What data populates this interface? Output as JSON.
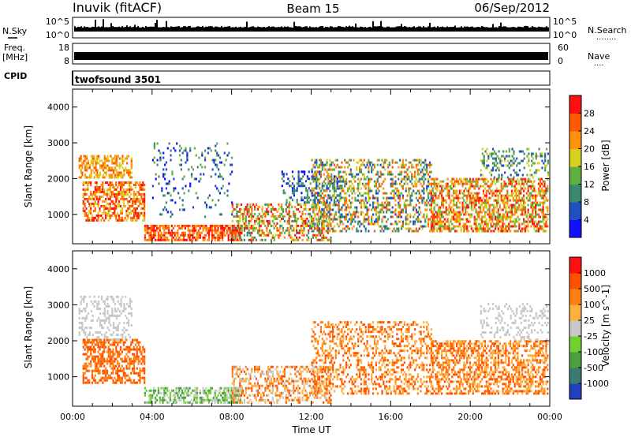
{
  "header": {
    "station": "Inuvik (fitACF)",
    "beam": "Beam 15",
    "date": "06/Sep/2012"
  },
  "side_labels": {
    "n_sky": "N.Sky",
    "n_search": "N.Search",
    "freq": "Freq.",
    "freq_unit": "[MHz]",
    "cpid": "CPID",
    "nave": "Nave",
    "dots_search": "........",
    "dots_nave": "...."
  },
  "noise_panel": {
    "left_ticks": [
      "10^5",
      "10^0"
    ],
    "right_ticks": [
      "10^5",
      "10^0"
    ]
  },
  "freq_panel": {
    "left_ticks": [
      "18",
      "8"
    ],
    "right_ticks": [
      "60",
      "0"
    ]
  },
  "cpid_panel": {
    "text": "twofsound 3501"
  },
  "chart_data": [
    {
      "type": "heatmap",
      "title": "",
      "xlabel": "",
      "ylabel": "Slant Range [km]",
      "yticks": [
        "1000",
        "2000",
        "3000",
        "4000"
      ],
      "ylim": [
        180,
        4500
      ],
      "xlim": [
        0,
        24
      ],
      "colorbar": {
        "label": "Power [dB]",
        "ticks": [
          "4",
          "8",
          "12",
          "16",
          "20",
          "24",
          "28"
        ],
        "colors": [
          "#1010ff",
          "#2050c0",
          "#3a8a70",
          "#60b040",
          "#d8d020",
          "#ff9010",
          "#ff5a00",
          "#ff1010"
        ]
      },
      "patches": [
        {
          "t0": 0.3,
          "t1": 3.0,
          "r0": 2000,
          "r1": 2600,
          "d": 0.55,
          "c": [
            4,
            6
          ]
        },
        {
          "t0": 0.5,
          "t1": 3.6,
          "r0": 800,
          "r1": 1900,
          "d": 0.55,
          "c": [
            4,
            7
          ]
        },
        {
          "t0": 3.6,
          "t1": 8.5,
          "r0": 250,
          "r1": 650,
          "d": 0.7,
          "c": [
            5,
            7
          ]
        },
        {
          "t0": 4.0,
          "t1": 8.0,
          "r0": 900,
          "r1": 3000,
          "d": 0.12,
          "c": [
            0,
            3
          ]
        },
        {
          "t0": 8.0,
          "t1": 13.0,
          "r0": 250,
          "r1": 1300,
          "d": 0.45,
          "c": [
            2,
            7
          ]
        },
        {
          "t0": 10.5,
          "t1": 13.5,
          "r0": 1300,
          "r1": 2200,
          "d": 0.3,
          "c": [
            0,
            3
          ]
        },
        {
          "t0": 12.0,
          "t1": 18.0,
          "r0": 500,
          "r1": 2500,
          "d": 0.4,
          "c": [
            1,
            6
          ]
        },
        {
          "t0": 18.0,
          "t1": 23.9,
          "r0": 500,
          "r1": 2000,
          "d": 0.55,
          "c": [
            3,
            7
          ]
        },
        {
          "t0": 20.5,
          "t1": 23.9,
          "r0": 2000,
          "r1": 2800,
          "d": 0.25,
          "c": [
            1,
            4
          ]
        }
      ]
    },
    {
      "type": "heatmap",
      "title": "",
      "xlabel": "Time UT",
      "ylabel": "Slant Range [km]",
      "xticks": [
        "00:00",
        "04:00",
        "08:00",
        "12:00",
        "16:00",
        "20:00",
        "00:00"
      ],
      "yticks": [
        "1000",
        "2000",
        "3000",
        "4000"
      ],
      "ylim": [
        180,
        4500
      ],
      "xlim": [
        0,
        24
      ],
      "colorbar": {
        "label": "Velocity [m s^-1]",
        "ticks": [
          "1000",
          "500",
          "100",
          "25",
          "-25",
          "-100",
          "-500",
          "-1000"
        ],
        "colors": [
          "#2040c0",
          "#3a7a70",
          "#4aa040",
          "#70d030",
          "#c8c8c8",
          "#ffb040",
          "#ff8010",
          "#ff5000",
          "#ff1010"
        ]
      },
      "patches": [
        {
          "t0": 0.3,
          "t1": 3.0,
          "r0": 2000,
          "r1": 3200,
          "d": 0.35,
          "c": [
            4,
            4
          ]
        },
        {
          "t0": 0.5,
          "t1": 3.6,
          "r0": 800,
          "r1": 2000,
          "d": 0.55,
          "c": [
            6,
            7
          ]
        },
        {
          "t0": 3.6,
          "t1": 8.5,
          "r0": 250,
          "r1": 650,
          "d": 0.55,
          "c": [
            2,
            4
          ]
        },
        {
          "t0": 8.0,
          "t1": 13.0,
          "r0": 250,
          "r1": 1300,
          "d": 0.4,
          "c": [
            4,
            7
          ]
        },
        {
          "t0": 12.0,
          "t1": 18.0,
          "r0": 500,
          "r1": 2500,
          "d": 0.35,
          "c": [
            5,
            7
          ]
        },
        {
          "t0": 18.0,
          "t1": 23.9,
          "r0": 500,
          "r1": 2000,
          "d": 0.5,
          "c": [
            5,
            7
          ]
        },
        {
          "t0": 20.5,
          "t1": 23.9,
          "r0": 2000,
          "r1": 3000,
          "d": 0.25,
          "c": [
            4,
            4
          ]
        }
      ]
    }
  ]
}
